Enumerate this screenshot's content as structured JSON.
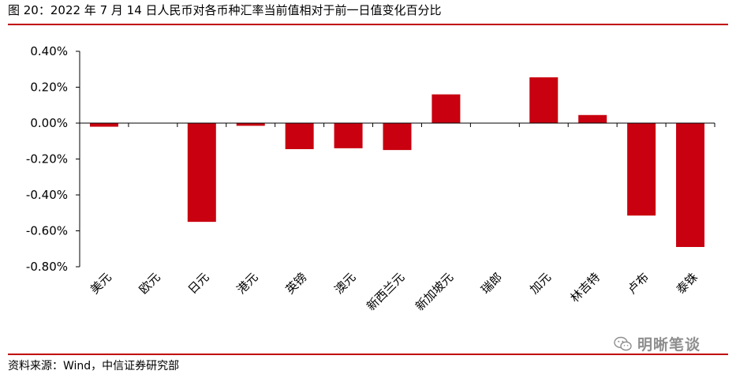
{
  "figure_title": "图 20：2022 年 7 月 14 日人民币对各币种汇率当前值相对于前一日值变化百分比",
  "source_note": "资料来源：Wind，中信证券研究部",
  "watermark": "明晰笔谈",
  "colors": {
    "bar": "#c8000f",
    "rule": "#c00000",
    "axis": "#000000"
  },
  "chart_data": {
    "type": "bar",
    "title": "",
    "xlabel": "",
    "ylabel": "",
    "categories": [
      "美元",
      "欧元",
      "日元",
      "港元",
      "英镑",
      "澳元",
      "新西兰元",
      "新加坡元",
      "瑞郎",
      "加元",
      "林吉特",
      "卢布",
      "泰铢"
    ],
    "values": [
      -0.02,
      0.0,
      -0.55,
      -0.015,
      -0.145,
      -0.14,
      -0.15,
      0.16,
      0.0,
      0.255,
      0.045,
      -0.515,
      -0.69
    ],
    "ylim": [
      -0.8,
      0.4
    ],
    "yticks": [
      0.4,
      0.2,
      0.0,
      -0.2,
      -0.4,
      -0.6,
      -0.8
    ],
    "ytick_labels": [
      "0.40%",
      "0.20%",
      "0.00%",
      "-0.20%",
      "-0.40%",
      "-0.60%",
      "-0.80%"
    ],
    "grid": false,
    "legend": "none"
  }
}
